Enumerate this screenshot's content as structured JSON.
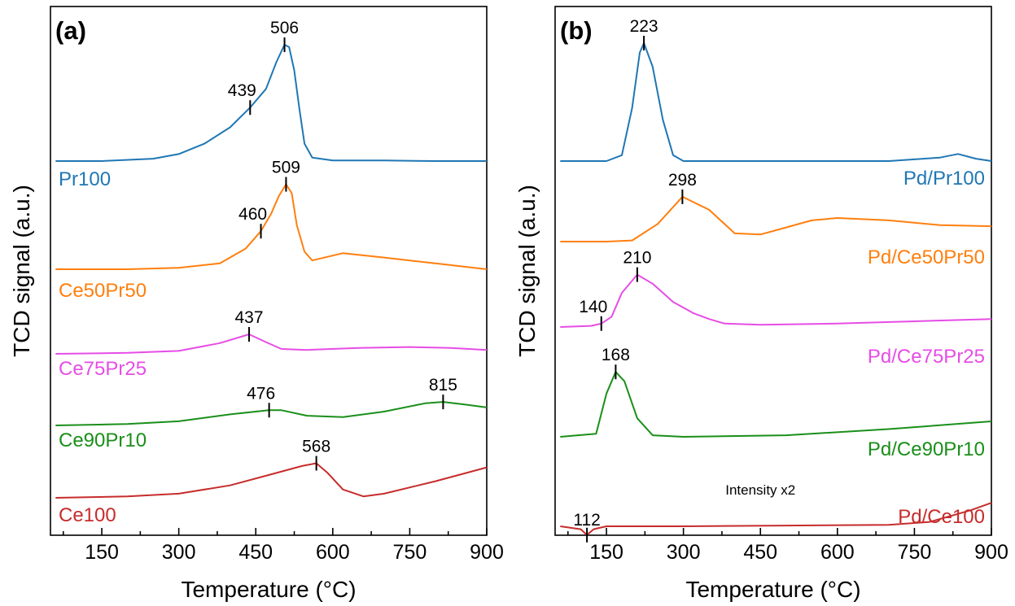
{
  "chart_data": [
    {
      "type": "line",
      "panel_label": "(a)",
      "xlabel": "Temperature (°C)",
      "ylabel": "TCD signal (a.u.)",
      "xlim": [
        50,
        900
      ],
      "xticks": [
        150,
        300,
        450,
        600,
        750,
        900
      ],
      "y_ticks_shown": false,
      "grid": false,
      "label_side": "left",
      "series": [
        {
          "name": "Pr100",
          "color": "#1f77b4",
          "x": [
            60,
            150,
            250,
            300,
            350,
            400,
            439,
            470,
            490,
            506,
            515,
            525,
            535,
            545,
            560,
            600,
            700,
            800,
            900
          ],
          "y": [
            0,
            0,
            0.02,
            0.06,
            0.15,
            0.29,
            0.46,
            0.62,
            0.85,
            1.0,
            0.98,
            0.78,
            0.45,
            0.15,
            0.03,
            0.005,
            0.005,
            0.0,
            0.0
          ],
          "peaks": [
            439,
            506
          ]
        },
        {
          "name": "Ce50Pr50",
          "color": "#ff7f0e",
          "x": [
            60,
            200,
            300,
            380,
            430,
            460,
            480,
            495,
            509,
            520,
            530,
            545,
            560,
            620,
            700,
            800,
            900
          ],
          "y": [
            0,
            0,
            0.01,
            0.04,
            0.14,
            0.26,
            0.38,
            0.5,
            0.58,
            0.52,
            0.3,
            0.12,
            0.06,
            0.11,
            0.08,
            0.04,
            0.0
          ],
          "peaks": [
            460,
            509
          ]
        },
        {
          "name": "Ce75Pr25",
          "color": "#e64de6",
          "x": [
            60,
            200,
            300,
            380,
            437,
            470,
            500,
            550,
            650,
            750,
            830,
            900
          ],
          "y": [
            0,
            0.01,
            0.03,
            0.11,
            0.2,
            0.12,
            0.05,
            0.04,
            0.06,
            0.07,
            0.06,
            0.04
          ],
          "peaks": [
            437
          ]
        },
        {
          "name": "Ce90Pr10",
          "color": "#1a8f1a",
          "x": [
            60,
            200,
            300,
            400,
            476,
            500,
            550,
            620,
            700,
            780,
            815,
            860,
            900
          ],
          "y": [
            0,
            0.01,
            0.03,
            0.08,
            0.11,
            0.11,
            0.07,
            0.06,
            0.1,
            0.16,
            0.17,
            0.15,
            0.13
          ],
          "peaks": [
            476,
            815
          ]
        },
        {
          "name": "Ce100",
          "color": "#c72c2c",
          "x": [
            60,
            200,
            300,
            400,
            480,
            540,
            568,
            590,
            620,
            660,
            700,
            800,
            900
          ],
          "y": [
            0,
            0.01,
            0.03,
            0.09,
            0.17,
            0.23,
            0.25,
            0.18,
            0.06,
            0.01,
            0.03,
            0.12,
            0.22
          ],
          "peaks": [
            568
          ]
        }
      ]
    },
    {
      "type": "line",
      "panel_label": "(b)",
      "xlabel": "Temperature (°C)",
      "ylabel": "TCD signal (a.u.)",
      "xlim": [
        50,
        900
      ],
      "xticks": [
        150,
        300,
        450,
        600,
        750,
        900
      ],
      "y_ticks_shown": false,
      "grid": false,
      "label_side": "right",
      "annotation": "Intensity x2",
      "series": [
        {
          "name": "Pd/Pr100",
          "color": "#1f77b4",
          "x": [
            60,
            150,
            180,
            200,
            215,
            223,
            240,
            260,
            280,
            300,
            350,
            500,
            700,
            800,
            835,
            870,
            900
          ],
          "y": [
            0,
            0,
            0.05,
            0.45,
            0.92,
            1.0,
            0.8,
            0.35,
            0.05,
            0.0,
            0.0,
            0.0,
            0.0,
            0.03,
            0.06,
            0.02,
            0.0
          ],
          "peaks": [
            223
          ]
        },
        {
          "name": "Pd/Ce50Pr50",
          "color": "#ff7f0e",
          "x": [
            60,
            150,
            200,
            250,
            298,
            350,
            400,
            450,
            500,
            550,
            600,
            700,
            800,
            900
          ],
          "y": [
            0,
            0,
            0.01,
            0.15,
            0.38,
            0.27,
            0.07,
            0.06,
            0.12,
            0.18,
            0.2,
            0.18,
            0.14,
            0.13
          ],
          "peaks": [
            298
          ]
        },
        {
          "name": "Pd/Ce75Pr25",
          "color": "#e64de6",
          "x": [
            60,
            120,
            140,
            160,
            180,
            210,
            240,
            280,
            320,
            350,
            380,
            450,
            600,
            750,
            900
          ],
          "y": [
            0,
            0.01,
            0.03,
            0.09,
            0.3,
            0.46,
            0.38,
            0.22,
            0.12,
            0.07,
            0.03,
            0.02,
            0.03,
            0.05,
            0.07
          ],
          "peaks": [
            140,
            210
          ]
        },
        {
          "name": "Pd/Ce90Pr10",
          "color": "#1a8f1a",
          "x": [
            60,
            130,
            150,
            168,
            185,
            210,
            240,
            300,
            500,
            700,
            900
          ],
          "y": [
            0,
            0.02,
            0.28,
            0.42,
            0.36,
            0.12,
            0.01,
            0.0,
            0.01,
            0.05,
            0.1
          ],
          "peaks": [
            168
          ]
        },
        {
          "name": "Pd/Ce100",
          "color": "#c72c2c",
          "x": [
            60,
            100,
            112,
            125,
            150,
            300,
            500,
            700,
            780,
            820,
            860,
            900
          ],
          "y": [
            0,
            -0.02,
            -0.06,
            -0.02,
            0.0,
            0.0,
            0.005,
            0.01,
            0.03,
            0.07,
            0.11,
            0.16
          ],
          "peaks": [
            112
          ]
        }
      ]
    }
  ]
}
